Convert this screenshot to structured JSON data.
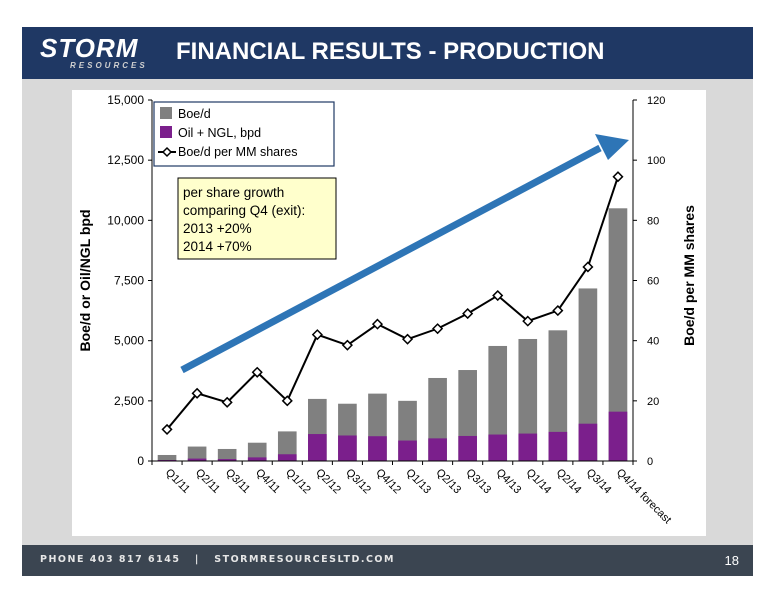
{
  "header": {
    "logo_text": "STORM",
    "logo_subtext": "RESOURCES",
    "title": "FINANCIAL RESULTS - PRODUCTION"
  },
  "footer": {
    "contact": "PHONE 403 817 6145   |   STORMRESOURCESLTD.COM",
    "page_number": "18"
  },
  "annotation": {
    "lines": [
      "per share growth",
      "comparing Q4 (exit):",
      "2013 +20%",
      "2014 +70%"
    ]
  },
  "colors": {
    "header_bg": "#1f3864",
    "boe_bar": "#808080",
    "oil_bar": "#7b1f8c",
    "line": "#000000",
    "arrow": "#2e75b6",
    "annotation_bg": "#ffffcc"
  },
  "chart_data": {
    "type": "bar",
    "categories": [
      "Q1/11",
      "Q2/11",
      "Q3/11",
      "Q4/11",
      "Q1/12",
      "Q2/12",
      "Q3/12",
      "Q4/12",
      "Q1/13",
      "Q2/13",
      "Q3/13",
      "Q4/13",
      "Q1/14",
      "Q2/14",
      "Q3/14",
      "Q4/14 forecast"
    ],
    "series": [
      {
        "name": "Boe/d",
        "kind": "bar",
        "axis": "left",
        "values": [
          250,
          600,
          500,
          760,
          1230,
          2580,
          2380,
          2800,
          2500,
          3450,
          3780,
          4780,
          5070,
          5430,
          7170,
          10500
        ]
      },
      {
        "name": "Oil + NGL, bpd",
        "kind": "bar",
        "axis": "left",
        "values": [
          40,
          100,
          80,
          150,
          280,
          1120,
          1060,
          1030,
          850,
          940,
          1040,
          1100,
          1140,
          1210,
          1550,
          2050
        ]
      },
      {
        "name": "Boe/d per MM shares",
        "kind": "line",
        "axis": "right",
        "values": [
          10.5,
          22.5,
          19.5,
          29.5,
          20,
          42,
          38.5,
          45.5,
          40.5,
          44,
          49,
          55,
          46.5,
          50,
          64.5,
          94.5
        ]
      }
    ],
    "ylabel": "Boe/d or Oil/NGL bpd",
    "y2label": "Boe/d per MM shares",
    "ylim": [
      0,
      15000
    ],
    "y2lim": [
      0,
      120
    ],
    "yticks": [
      "0",
      "2,500",
      "5,000",
      "7,500",
      "10,000",
      "12,500",
      "15,000"
    ],
    "y2ticks": [
      "0",
      "20",
      "40",
      "60",
      "80",
      "100",
      "120"
    ],
    "legend_position": "top-left",
    "grid": false
  }
}
